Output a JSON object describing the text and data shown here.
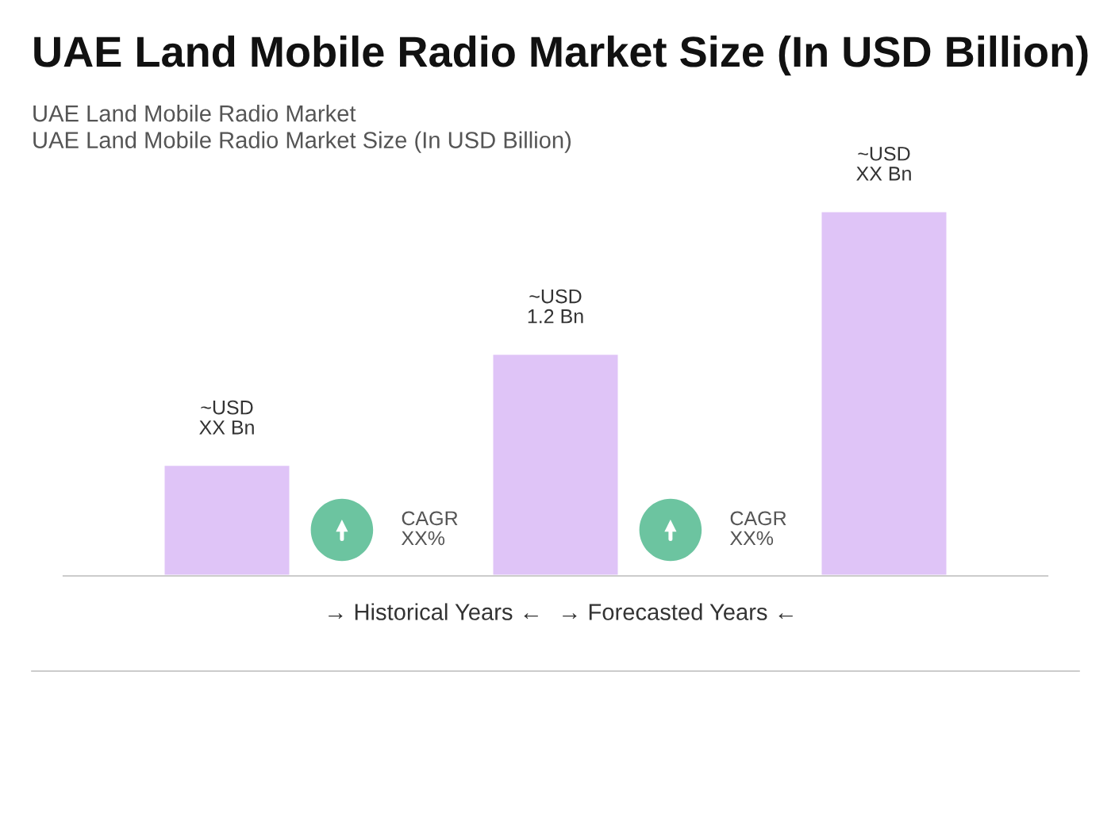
{
  "chart_data": {
    "type": "bar",
    "title": "UAE Land Mobile Radio Market Size (In USD Billion)",
    "subtitle": "UAE Land Mobile Radio Market\nUAE Land Mobile Radio Market Size (In USD Billion)",
    "categories": [
      null,
      null,
      null
    ],
    "values": [
      0.6,
      1.2,
      1.97
    ],
    "value_labels": [
      "~USD\nXX Bn",
      "~USD\n1.2 Bn",
      "~USD\nXX Bn"
    ],
    "color": "#dfc4f7",
    "grid": false,
    "legend": false,
    "annotations": [
      "CAGR\nXX%",
      "CAGR\nXX%",
      "→ Historical Years ←",
      "→ Forecasted Years ←"
    ]
  }
}
